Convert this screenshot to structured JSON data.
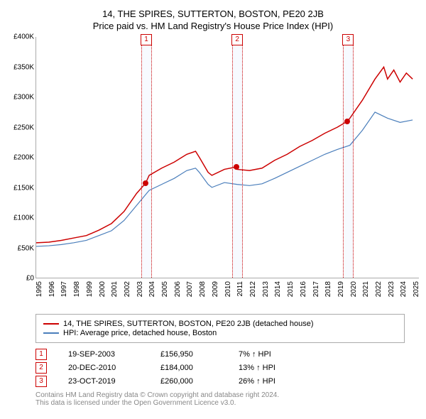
{
  "titles": {
    "line1": "14, THE SPIRES, SUTTERTON, BOSTON, PE20 2JB",
    "line2": "Price paid vs. HM Land Registry's House Price Index (HPI)"
  },
  "chart": {
    "type": "line",
    "x_min": 1995,
    "x_max": 2025.5,
    "y_min": 0,
    "y_max": 400000,
    "y_ticks": [
      0,
      50000,
      100000,
      150000,
      200000,
      250000,
      300000,
      350000,
      400000
    ],
    "y_tick_labels": [
      "£0",
      "£50K",
      "£100K",
      "£150K",
      "£200K",
      "£250K",
      "£300K",
      "£350K",
      "£400K"
    ],
    "x_ticks": [
      1995,
      1996,
      1997,
      1998,
      1999,
      2000,
      2001,
      2002,
      2003,
      2004,
      2005,
      2006,
      2007,
      2008,
      2009,
      2010,
      2011,
      2012,
      2013,
      2014,
      2015,
      2016,
      2017,
      2018,
      2019,
      2020,
      2021,
      2022,
      2023,
      2024,
      2025
    ],
    "background_color": "#ffffff",
    "series": [
      {
        "name": "property",
        "label": "14, THE SPIRES, SUTTERTON, BOSTON, PE20 2JB (detached house)",
        "color": "#cc0000",
        "line_width": 1.5,
        "points": [
          [
            1995,
            58000
          ],
          [
            1996,
            59000
          ],
          [
            1997,
            62000
          ],
          [
            1998,
            66000
          ],
          [
            1999,
            70000
          ],
          [
            2000,
            79000
          ],
          [
            2001,
            90000
          ],
          [
            2002,
            110000
          ],
          [
            2003,
            140000
          ],
          [
            2003.72,
            156950
          ],
          [
            2004,
            170000
          ],
          [
            2005,
            182000
          ],
          [
            2006,
            192000
          ],
          [
            2007,
            205000
          ],
          [
            2007.7,
            210000
          ],
          [
            2008,
            200000
          ],
          [
            2008.7,
            175000
          ],
          [
            2009,
            170000
          ],
          [
            2010,
            180000
          ],
          [
            2010.97,
            184000
          ],
          [
            2011,
            180000
          ],
          [
            2012,
            178000
          ],
          [
            2013,
            182000
          ],
          [
            2014,
            195000
          ],
          [
            2015,
            205000
          ],
          [
            2016,
            218000
          ],
          [
            2017,
            228000
          ],
          [
            2018,
            240000
          ],
          [
            2019,
            250000
          ],
          [
            2019.81,
            260000
          ],
          [
            2020,
            265000
          ],
          [
            2021,
            295000
          ],
          [
            2022,
            330000
          ],
          [
            2022.7,
            350000
          ],
          [
            2023,
            330000
          ],
          [
            2023.5,
            345000
          ],
          [
            2024,
            325000
          ],
          [
            2024.5,
            340000
          ],
          [
            2025,
            330000
          ]
        ]
      },
      {
        "name": "hpi",
        "label": "HPI: Average price, detached house, Boston",
        "color": "#4a7ebb",
        "line_width": 1.2,
        "points": [
          [
            1995,
            52000
          ],
          [
            1996,
            53000
          ],
          [
            1997,
            55000
          ],
          [
            1998,
            58000
          ],
          [
            1999,
            62000
          ],
          [
            2000,
            70000
          ],
          [
            2001,
            78000
          ],
          [
            2002,
            95000
          ],
          [
            2003,
            120000
          ],
          [
            2004,
            145000
          ],
          [
            2005,
            155000
          ],
          [
            2006,
            165000
          ],
          [
            2007,
            178000
          ],
          [
            2007.7,
            182000
          ],
          [
            2008,
            175000
          ],
          [
            2008.7,
            155000
          ],
          [
            2009,
            150000
          ],
          [
            2010,
            158000
          ],
          [
            2011,
            155000
          ],
          [
            2012,
            153000
          ],
          [
            2013,
            156000
          ],
          [
            2014,
            165000
          ],
          [
            2015,
            175000
          ],
          [
            2016,
            185000
          ],
          [
            2017,
            195000
          ],
          [
            2018,
            205000
          ],
          [
            2019,
            213000
          ],
          [
            2020,
            220000
          ],
          [
            2021,
            245000
          ],
          [
            2022,
            275000
          ],
          [
            2023,
            265000
          ],
          [
            2024,
            258000
          ],
          [
            2025,
            262000
          ]
        ]
      }
    ],
    "markers": [
      {
        "n": 1,
        "date_str": "19-SEP-2003",
        "x": 2003.72,
        "price": 156950,
        "price_str": "£156,950",
        "diff": "7% ↑ HPI"
      },
      {
        "n": 2,
        "date_str": "20-DEC-2010",
        "x": 2010.97,
        "price": 184000,
        "price_str": "£184,000",
        "diff": "13% ↑ HPI"
      },
      {
        "n": 3,
        "date_str": "23-OCT-2019",
        "x": 2019.81,
        "price": 260000,
        "price_str": "£260,000",
        "diff": "26% ↑ HPI"
      }
    ],
    "marker_band_color": "rgba(100,150,255,0.05)",
    "marker_border_color": "#cc0000",
    "dot_color": "#cc0000"
  },
  "footer": {
    "line1": "Contains HM Land Registry data © Crown copyright and database right 2024.",
    "line2": "This data is licensed under the Open Government Licence v3.0."
  }
}
